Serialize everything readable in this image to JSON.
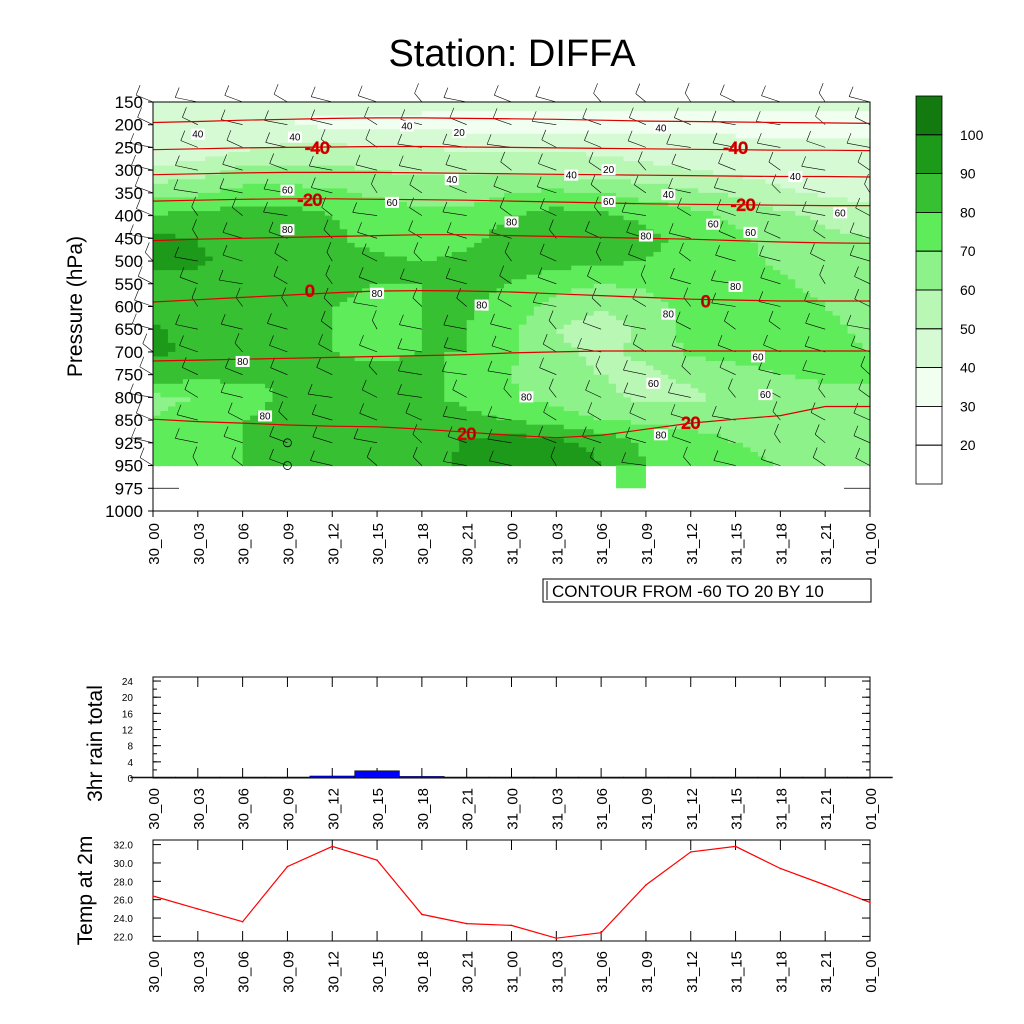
{
  "page_title": "Station: DIFFA",
  "chart_data": [
    {
      "type": "heatmap",
      "name": "humidity-cross-section",
      "title": "Station: DIFFA",
      "ylabel": "Pressure (hPa)",
      "x_ticks": [
        "30_00",
        "30_03",
        "30_06",
        "30_09",
        "30_12",
        "30_15",
        "30_18",
        "30_21",
        "31_00",
        "31_03",
        "31_06",
        "31_09",
        "31_12",
        "31_15",
        "31_18",
        "31_21",
        "01_00"
      ],
      "y_levels": [
        150,
        200,
        250,
        300,
        350,
        400,
        450,
        500,
        550,
        600,
        650,
        700,
        750,
        800,
        850,
        925,
        950,
        975,
        1000
      ],
      "colorbar": {
        "levels": [
          20,
          30,
          40,
          50,
          60,
          70,
          80,
          90,
          100
        ],
        "colors": [
          "#ffffff",
          "#ffffff",
          "#f0fff0",
          "#d6fbd4",
          "#b8f7b4",
          "#8ef28a",
          "#5fec5a",
          "#37c032",
          "#1e9a1a",
          "#137a10"
        ]
      },
      "field_samples": {
        "times": [
          0,
          3,
          6,
          9,
          12,
          15,
          18,
          21,
          24,
          27,
          30,
          33,
          36,
          39,
          42,
          45,
          48
        ],
        "levels": [
          150,
          200,
          250,
          300,
          350,
          400,
          450,
          500,
          550,
          600,
          650,
          700,
          750,
          800,
          850,
          925,
          950
        ],
        "values": [
          [
            45,
            42,
            42,
            42,
            42,
            42,
            42,
            42,
            42,
            42,
            42,
            42,
            42,
            42,
            42,
            42,
            42
          ],
          [
            40,
            40,
            40,
            40,
            38,
            38,
            38,
            36,
            36,
            36,
            36,
            36,
            36,
            36,
            36,
            36,
            36
          ],
          [
            42,
            42,
            48,
            52,
            52,
            50,
            50,
            48,
            48,
            48,
            48,
            46,
            46,
            44,
            44,
            44,
            44
          ],
          [
            52,
            55,
            62,
            62,
            62,
            60,
            58,
            58,
            58,
            56,
            54,
            52,
            50,
            48,
            44,
            42,
            42
          ],
          [
            66,
            68,
            74,
            74,
            72,
            68,
            66,
            66,
            70,
            72,
            70,
            66,
            62,
            58,
            52,
            48,
            46
          ],
          [
            80,
            84,
            84,
            84,
            80,
            76,
            72,
            72,
            80,
            84,
            82,
            78,
            74,
            68,
            62,
            58,
            56
          ],
          [
            92,
            90,
            84,
            82,
            82,
            76,
            74,
            78,
            84,
            86,
            84,
            82,
            78,
            72,
            66,
            62,
            60
          ],
          [
            92,
            91,
            88,
            84,
            84,
            82,
            80,
            82,
            84,
            84,
            82,
            80,
            76,
            74,
            68,
            64,
            62
          ],
          [
            88,
            88,
            86,
            84,
            82,
            80,
            80,
            82,
            80,
            74,
            70,
            72,
            74,
            76,
            72,
            66,
            64
          ],
          [
            84,
            84,
            82,
            82,
            80,
            78,
            80,
            82,
            76,
            66,
            60,
            66,
            74,
            78,
            76,
            70,
            66
          ],
          [
            92,
            86,
            82,
            82,
            80,
            78,
            80,
            80,
            72,
            60,
            56,
            62,
            74,
            76,
            78,
            72,
            68
          ],
          [
            92,
            88,
            84,
            82,
            80,
            78,
            80,
            80,
            72,
            62,
            58,
            62,
            72,
            74,
            76,
            72,
            70
          ],
          [
            86,
            84,
            82,
            80,
            82,
            82,
            82,
            78,
            70,
            62,
            60,
            58,
            62,
            66,
            70,
            72,
            72
          ],
          [
            68,
            70,
            76,
            82,
            84,
            84,
            82,
            78,
            72,
            66,
            62,
            58,
            58,
            62,
            64,
            66,
            68
          ],
          [
            70,
            74,
            80,
            82,
            86,
            84,
            84,
            82,
            80,
            76,
            70,
            68,
            66,
            64,
            62,
            62,
            62
          ],
          [
            72,
            74,
            80,
            84,
            86,
            84,
            82,
            92,
            96,
            92,
            88,
            78,
            76,
            70,
            68,
            66,
            66
          ],
          [
            74,
            76,
            80,
            84,
            84,
            82,
            82,
            94,
            98,
            94,
            90,
            80,
            76,
            72,
            70,
            68,
            68
          ]
        ]
      },
      "red_contours": [
        {
          "label": "-40",
          "values": [
            195,
            193,
            190,
            188,
            186,
            185,
            185,
            186,
            187,
            188,
            190,
            192,
            193,
            194,
            195,
            196,
            197
          ]
        },
        {
          "label": "-40",
          "values": [
            255,
            253,
            251,
            250,
            249,
            248,
            248,
            249,
            250,
            251,
            252,
            253,
            254,
            255,
            256,
            256,
            257
          ]
        },
        {
          "label": "",
          "values": [
            310,
            308,
            306,
            305,
            305,
            305,
            306,
            307,
            308,
            309,
            310,
            311,
            312,
            313,
            314,
            314,
            315
          ]
        },
        {
          "label": "-20",
          "values": [
            368,
            366,
            364,
            363,
            363,
            364,
            365,
            366,
            368,
            370,
            372,
            374,
            375,
            376,
            377,
            378,
            378
          ]
        },
        {
          "label": "",
          "values": [
            455,
            452,
            450,
            448,
            446,
            444,
            442,
            442,
            444,
            446,
            448,
            450,
            452,
            455,
            458,
            460,
            461
          ]
        },
        {
          "label": "0",
          "values": [
            590,
            585,
            580,
            575,
            570,
            566,
            565,
            566,
            568,
            572,
            576,
            580,
            584,
            586,
            588,
            588,
            588
          ]
        },
        {
          "label": "",
          "values": [
            720,
            718,
            716,
            714,
            712,
            710,
            708,
            706,
            702,
            700,
            698,
            698,
            698,
            698,
            698,
            698,
            698
          ]
        },
        {
          "label": "20",
          "values": [
            848,
            855,
            860,
            866,
            870,
            872,
            880,
            890,
            900,
            908,
            900,
            880,
            860,
            848,
            840,
            820,
            820
          ]
        }
      ],
      "contour_label_positions": [
        {
          "text": "-40",
          "t": 11,
          "p": 250
        },
        {
          "text": "-40",
          "t": 39,
          "p": 250
        },
        {
          "text": "-20",
          "t": 10.5,
          "p": 365
        },
        {
          "text": "-20",
          "t": 39.5,
          "p": 376
        },
        {
          "text": "0",
          "t": 10.5,
          "p": 565
        },
        {
          "text": "0",
          "t": 37,
          "p": 588
        },
        {
          "text": "20",
          "t": 21,
          "p": 895
        },
        {
          "text": "20",
          "t": 36,
          "p": 858
        }
      ],
      "black_contour_labels": [
        {
          "text": "40",
          "t": 3,
          "p": 222
        },
        {
          "text": "40",
          "t": 9.5,
          "p": 228
        },
        {
          "text": "40",
          "t": 17,
          "p": 204
        },
        {
          "text": "20",
          "t": 20.5,
          "p": 218
        },
        {
          "text": "40",
          "t": 34,
          "p": 208
        },
        {
          "text": "40",
          "t": 20,
          "p": 322
        },
        {
          "text": "20",
          "t": 30.5,
          "p": 300
        },
        {
          "text": "40",
          "t": 28,
          "p": 312
        },
        {
          "text": "40",
          "t": 34.5,
          "p": 355
        },
        {
          "text": "40",
          "t": 43,
          "p": 315
        },
        {
          "text": "60",
          "t": 9,
          "p": 345
        },
        {
          "text": "60",
          "t": 16,
          "p": 372
        },
        {
          "text": "60",
          "t": 30.5,
          "p": 370
        },
        {
          "text": "60",
          "t": 37.5,
          "p": 420
        },
        {
          "text": "60",
          "t": 40,
          "p": 438
        },
        {
          "text": "60",
          "t": 46,
          "p": 395
        },
        {
          "text": "80",
          "t": 9,
          "p": 432
        },
        {
          "text": "80",
          "t": 24,
          "p": 415
        },
        {
          "text": "80",
          "t": 33,
          "p": 446
        },
        {
          "text": "80",
          "t": 39,
          "p": 557
        },
        {
          "text": "80",
          "t": 15,
          "p": 572
        },
        {
          "text": "80",
          "t": 22,
          "p": 598
        },
        {
          "text": "80",
          "t": 34.5,
          "p": 618
        },
        {
          "text": "80",
          "t": 6,
          "p": 722
        },
        {
          "text": "60",
          "t": 40.5,
          "p": 712
        },
        {
          "text": "60",
          "t": 33.5,
          "p": 770
        },
        {
          "text": "60",
          "t": 41,
          "p": 795
        },
        {
          "text": "80",
          "t": 25,
          "p": 800
        },
        {
          "text": "80",
          "t": 7.5,
          "p": 842
        },
        {
          "text": "80",
          "t": 34,
          "p": 900
        }
      ]
    },
    {
      "type": "bar",
      "name": "rain-3hr",
      "ylabel": "3hr rain total",
      "categories": [
        "30_00",
        "30_03",
        "30_06",
        "30_09",
        "30_12",
        "30_15",
        "30_18",
        "30_21",
        "31_00",
        "31_03",
        "31_06",
        "31_09",
        "31_12",
        "31_15",
        "31_18",
        "31_21",
        "01_00"
      ],
      "values": [
        0,
        0,
        0,
        0,
        0.5,
        1.8,
        0.4,
        0,
        0,
        0,
        0,
        0,
        0,
        0,
        0,
        0,
        0
      ],
      "ylim": [
        0,
        25
      ],
      "yticks": [
        "0",
        "4",
        "8",
        "12",
        "16",
        "20",
        "24"
      ],
      "bar_color": "#0000ff"
    },
    {
      "type": "line",
      "name": "temp-2m",
      "ylabel": "Temp at 2m",
      "categories": [
        "30_00",
        "30_03",
        "30_06",
        "30_09",
        "30_12",
        "30_15",
        "30_18",
        "30_21",
        "31_00",
        "31_03",
        "31_06",
        "31_09",
        "31_12",
        "31_15",
        "31_18",
        "31_21",
        "01_00"
      ],
      "values": [
        26.4,
        25.0,
        23.6,
        29.6,
        31.8,
        30.3,
        24.4,
        23.4,
        23.2,
        21.8,
        22.4,
        27.6,
        31.2,
        31.8,
        29.4,
        27.6,
        25.7
      ],
      "ylim": [
        21.5,
        32.5
      ],
      "yticks": [
        "22.0",
        "24.0",
        "26.0",
        "28.0",
        "30.0",
        "32.0"
      ],
      "line_color": "#ff0000"
    }
  ],
  "contour_info": "CONTOUR FROM -60 TO 20 BY 10"
}
